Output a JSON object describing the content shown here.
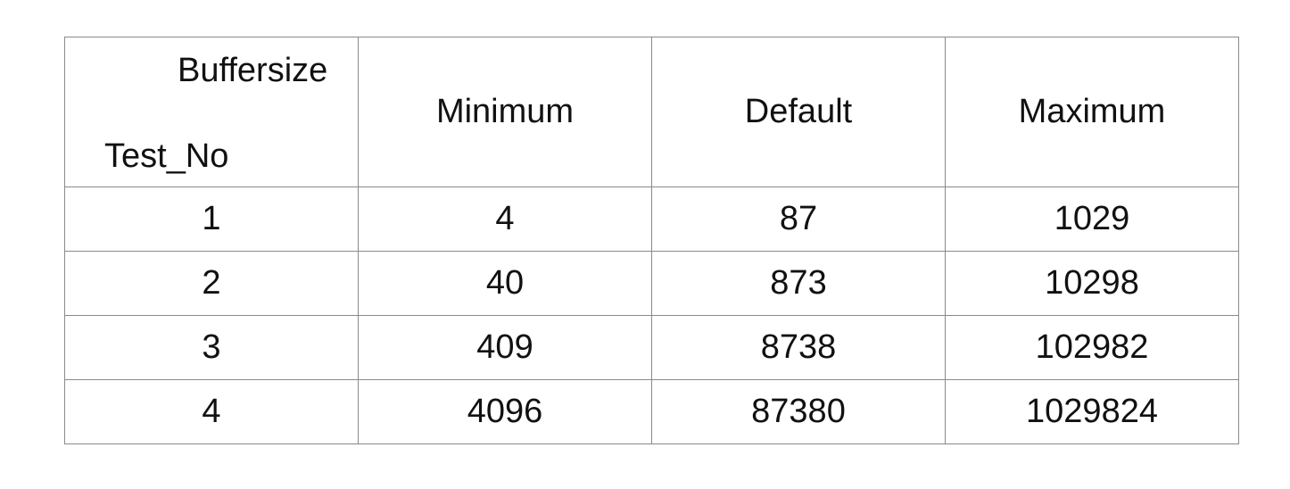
{
  "table": {
    "corner": {
      "top_label": "Buffersize",
      "bottom_label": "Test_No"
    },
    "columns": [
      "Minimum",
      "Default",
      "Maximum"
    ],
    "rows": [
      {
        "test_no": "1",
        "values": [
          "4",
          "87",
          "1029"
        ]
      },
      {
        "test_no": "2",
        "values": [
          "40",
          "873",
          "10298"
        ]
      },
      {
        "test_no": "3",
        "values": [
          "409",
          "8738",
          "102982"
        ]
      },
      {
        "test_no": "4",
        "values": [
          "4096",
          "87380",
          "1029824"
        ]
      }
    ]
  }
}
